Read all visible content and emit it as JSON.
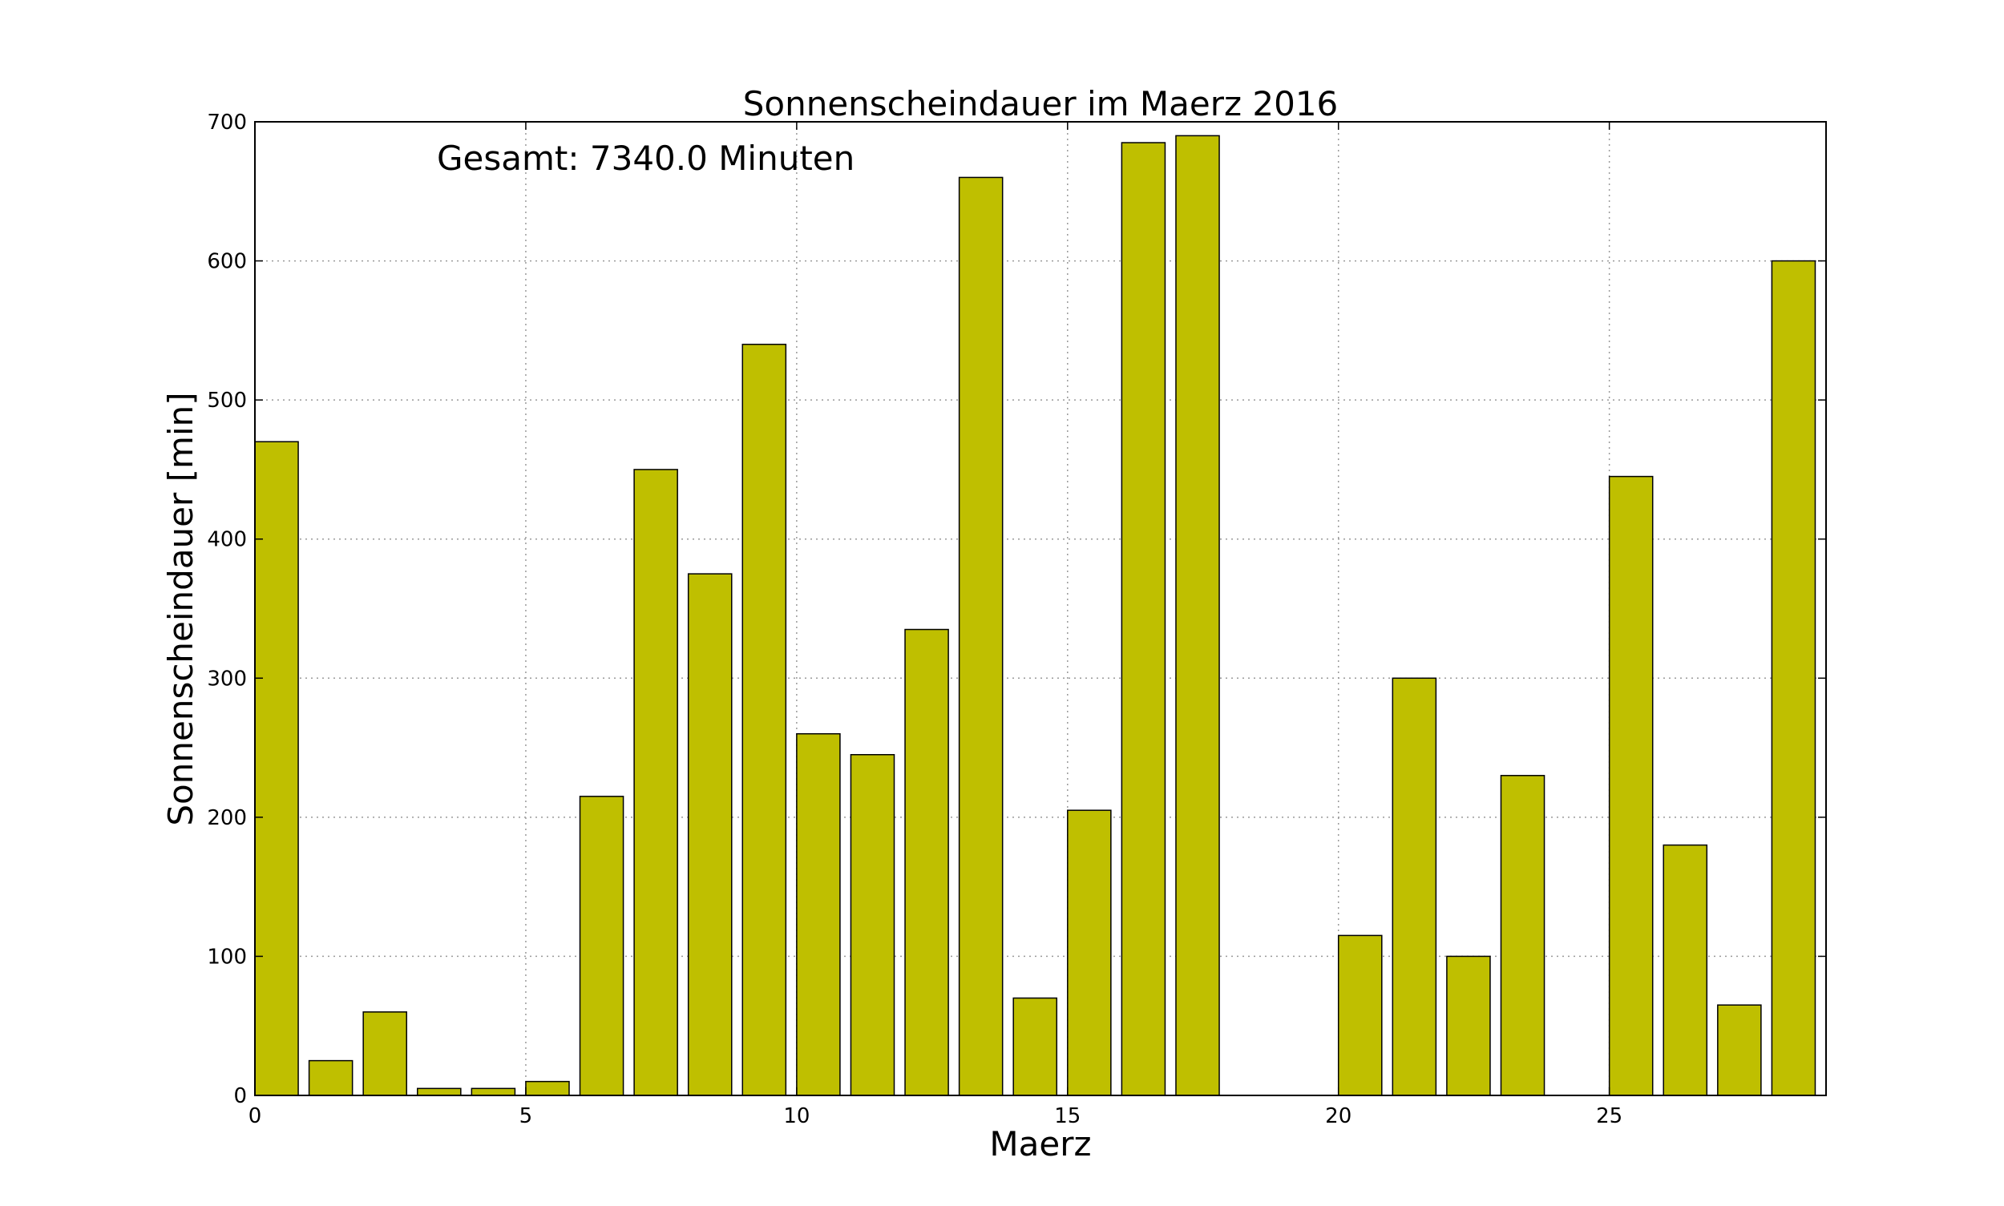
{
  "chart_data": {
    "type": "bar",
    "title": "Sonnenscheindauer im Maerz 2016",
    "xlabel": "Maerz",
    "ylabel": "Sonnenscheindauer [min]",
    "annotation": "Gesamt: 7340.0 Minuten",
    "xlim": [
      0,
      29
    ],
    "ylim": [
      0,
      700
    ],
    "x_ticks": [
      0,
      5,
      10,
      15,
      20,
      25
    ],
    "y_ticks": [
      0,
      100,
      200,
      300,
      400,
      500,
      600,
      700
    ],
    "grid": true,
    "bar_width": 0.8,
    "bar_color": "#bfbf00",
    "edge_color": "#000000",
    "x": [
      0,
      1,
      2,
      3,
      4,
      5,
      6,
      7,
      8,
      9,
      10,
      11,
      12,
      13,
      14,
      15,
      16,
      17,
      18,
      19,
      20,
      21,
      22,
      23,
      24,
      25,
      26,
      27,
      28
    ],
    "values": [
      470,
      25,
      60,
      5,
      5,
      10,
      215,
      450,
      375,
      540,
      260,
      245,
      335,
      660,
      70,
      205,
      685,
      690,
      0,
      0,
      115,
      300,
      100,
      230,
      0,
      445,
      180,
      65,
      600
    ]
  }
}
